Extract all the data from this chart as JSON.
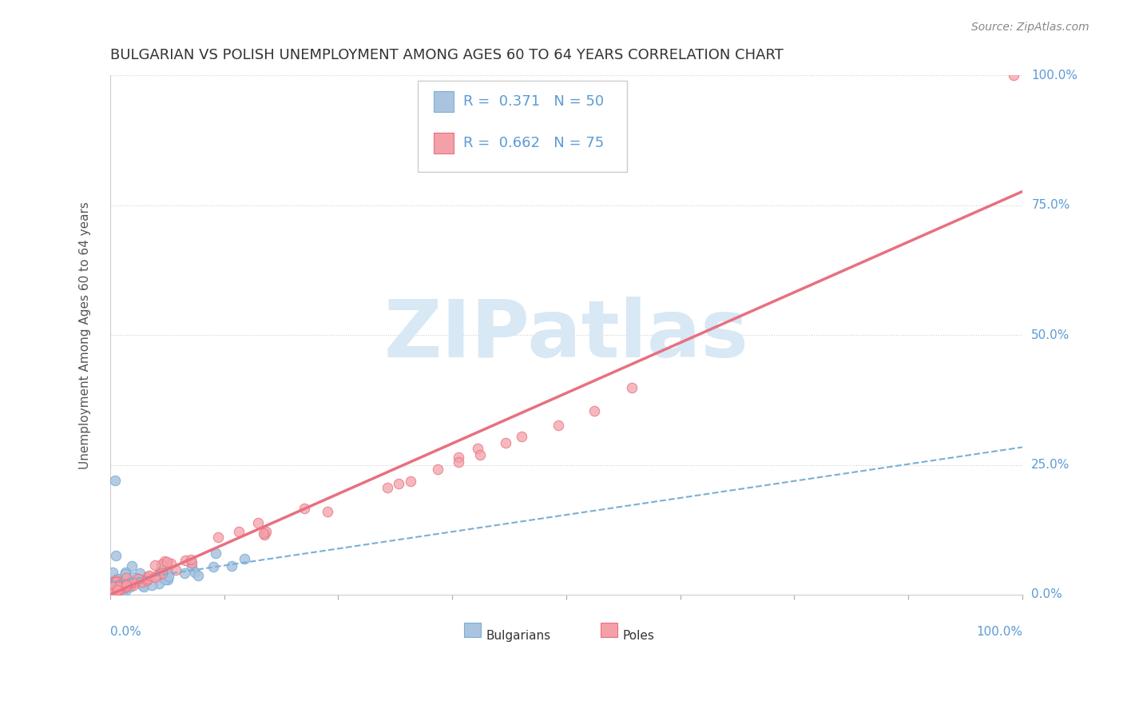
{
  "title": "BULGARIAN VS POLISH UNEMPLOYMENT AMONG AGES 60 TO 64 YEARS CORRELATION CHART",
  "source": "Source: ZipAtlas.com",
  "ylabel": "Unemployment Among Ages 60 to 64 years",
  "legend_R1": "0.371",
  "legend_N1": "50",
  "legend_R2": "0.662",
  "legend_N2": "75",
  "bg_color": "#ffffff",
  "blue_color": "#aac4e0",
  "pink_color": "#f4a0a8",
  "blue_line_color": "#7bafd4",
  "pink_line_color": "#e87080",
  "grid_color": "#d0d0d0",
  "title_color": "#333333",
  "axis_label_color": "#5b9bd5",
  "watermark_color": "#d8e8f5",
  "watermark_text": "ZIPatlas"
}
